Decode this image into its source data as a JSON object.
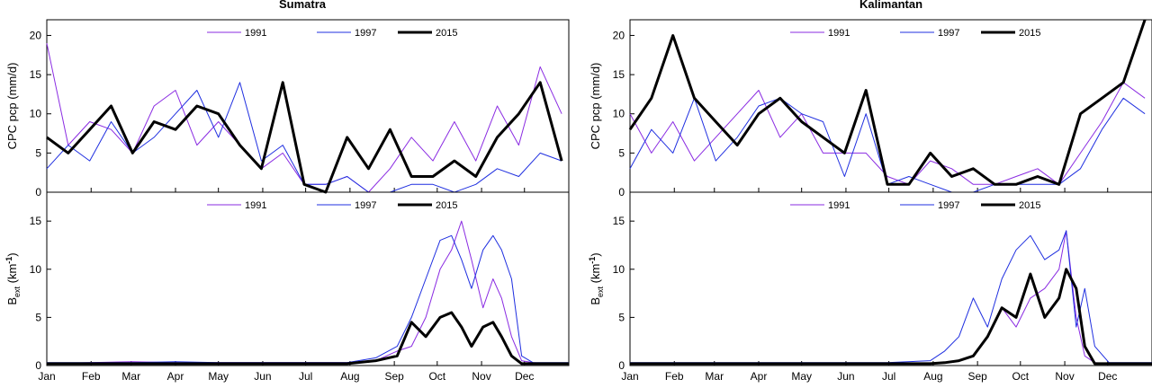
{
  "colors": {
    "y1991": "#8a2be2",
    "y1997": "#1f2fe0",
    "y2015": "#000000",
    "axis": "#000000"
  },
  "chart_data": [
    {
      "type": "line",
      "panel": "sumatra-precip",
      "title": "Sumatra",
      "xlabel": "",
      "ylabel": "CPC pcp (mm/d)",
      "ylim": [
        0,
        22
      ],
      "yticks": [
        "0",
        "5",
        "10",
        "15",
        "20"
      ],
      "legend": [
        "1991",
        "1997",
        "2015"
      ],
      "x": [
        0,
        15,
        30,
        45,
        60,
        75,
        90,
        105,
        120,
        135,
        150,
        165,
        180,
        195,
        210,
        225,
        240,
        255,
        270,
        285,
        300,
        315,
        330,
        345,
        360
      ],
      "series": [
        {
          "name": "1991",
          "values": [
            19,
            6,
            9,
            8,
            5,
            11,
            13,
            6,
            9,
            6,
            3,
            5,
            1,
            1,
            2,
            0,
            3,
            7,
            4,
            9,
            4,
            11,
            6,
            16,
            10
          ]
        },
        {
          "name": "1997",
          "values": [
            3,
            6,
            4,
            9,
            5,
            7,
            10,
            13,
            7,
            14,
            4,
            6,
            1,
            1,
            2,
            0,
            0,
            1,
            1,
            0,
            1,
            3,
            2,
            5,
            4
          ]
        },
        {
          "name": "2015",
          "values": [
            7,
            5,
            8,
            11,
            5,
            9,
            8,
            11,
            10,
            6,
            3,
            14,
            1,
            0,
            7,
            3,
            8,
            2,
            2,
            4,
            2,
            7,
            10,
            14,
            4
          ]
        }
      ]
    },
    {
      "type": "line",
      "panel": "sumatra-bext",
      "title": "",
      "xlabel": "",
      "ylabel_main": "B",
      "ylabel_sub": "ext",
      "ylabel_unit": "(km",
      "ylabel_exp": "-1",
      "ylabel_close": ")",
      "ylim": [
        0,
        18
      ],
      "yticks": [
        "0",
        "5",
        "10",
        "15"
      ],
      "xticks": [
        "Jan",
        "Feb",
        "Mar",
        "Apr",
        "May",
        "Jun",
        "Jul",
        "Aug",
        "Sep",
        "Oct",
        "Nov",
        "Dec"
      ],
      "legend": [
        "1991",
        "1997",
        "2015"
      ],
      "x": [
        0,
        30,
        60,
        90,
        120,
        150,
        180,
        210,
        230,
        245,
        255,
        265,
        275,
        283,
        290,
        297,
        305,
        312,
        318,
        325,
        332,
        340,
        350,
        365
      ],
      "series": [
        {
          "name": "1991",
          "values": [
            0.2,
            0.3,
            0.4,
            0.3,
            0.3,
            0.3,
            0.3,
            0.3,
            0.5,
            1.5,
            2,
            5,
            10,
            12,
            15,
            11,
            6,
            9,
            7,
            3,
            0.5,
            0.3,
            0.2,
            0.2
          ]
        },
        {
          "name": "1997",
          "values": [
            0.3,
            0.3,
            0.3,
            0.4,
            0.3,
            0.3,
            0.3,
            0.3,
            0.8,
            2,
            5,
            9,
            13,
            13.5,
            11,
            8,
            12,
            13.5,
            12,
            9,
            1,
            0.3,
            0.3,
            0.3
          ]
        },
        {
          "name": "2015",
          "values": [
            0.2,
            0.2,
            0.2,
            0.2,
            0.2,
            0.2,
            0.2,
            0.2,
            0.5,
            1,
            4.5,
            3,
            5,
            5.5,
            4,
            2,
            4,
            4.5,
            3,
            1,
            0.2,
            0.2,
            0.2,
            0.2
          ]
        }
      ]
    },
    {
      "type": "line",
      "panel": "kalimantan-precip",
      "title": "Kalimantan",
      "xlabel": "",
      "ylabel": "CPC pcp (mm/d)",
      "ylim": [
        0,
        22
      ],
      "yticks": [
        "0",
        "5",
        "10",
        "15",
        "20"
      ],
      "legend": [
        "1991",
        "1997",
        "2015"
      ],
      "x": [
        0,
        15,
        30,
        45,
        60,
        75,
        90,
        105,
        120,
        135,
        150,
        165,
        180,
        195,
        210,
        225,
        240,
        255,
        270,
        285,
        300,
        315,
        330,
        345,
        360
      ],
      "series": [
        {
          "name": "1991",
          "values": [
            10,
            5,
            9,
            4,
            7,
            10,
            13,
            7,
            10,
            5,
            5,
            5,
            2,
            1,
            4,
            3,
            1,
            1,
            2,
            3,
            1,
            5,
            9,
            14,
            12
          ]
        },
        {
          "name": "1997",
          "values": [
            3,
            8,
            5,
            12,
            4,
            7,
            11,
            12,
            10,
            9,
            2,
            10,
            1,
            2,
            1,
            0,
            0,
            1,
            1,
            1,
            1,
            3,
            8,
            12,
            10
          ]
        },
        {
          "name": "2015",
          "values": [
            8,
            12,
            20,
            12,
            9,
            6,
            10,
            12,
            9,
            7,
            5,
            13,
            1,
            1,
            5,
            2,
            3,
            1,
            1,
            2,
            1,
            10,
            12,
            14,
            22
          ]
        }
      ]
    },
    {
      "type": "line",
      "panel": "kalimantan-bext",
      "title": "",
      "xlabel": "",
      "ylabel_main": "B",
      "ylabel_sub": "ext",
      "ylabel_unit": "(km",
      "ylabel_exp": "-1",
      "ylabel_close": ")",
      "ylim": [
        0,
        18
      ],
      "yticks": [
        "0",
        "5",
        "10",
        "15"
      ],
      "xticks": [
        "Jan",
        "Feb",
        "Mar",
        "Apr",
        "May",
        "Jun",
        "Jul",
        "Aug",
        "Sep",
        "Oct",
        "Nov",
        "Dec"
      ],
      "legend": [
        "1991",
        "1997",
        "2015"
      ],
      "x": [
        0,
        30,
        60,
        90,
        120,
        150,
        180,
        210,
        220,
        230,
        240,
        250,
        260,
        270,
        280,
        290,
        300,
        305,
        312,
        318,
        325,
        335,
        345,
        365
      ],
      "series": [
        {
          "name": "1991",
          "values": [
            0.2,
            0.2,
            0.2,
            0.2,
            0.2,
            0.2,
            0.2,
            0.2,
            0.3,
            0.5,
            1,
            3,
            6,
            4,
            7,
            8,
            10,
            14,
            5,
            1,
            0.3,
            0.2,
            0.2,
            0.2
          ]
        },
        {
          "name": "1997",
          "values": [
            0.3,
            0.3,
            0.3,
            0.3,
            0.3,
            0.3,
            0.3,
            0.5,
            1.5,
            3,
            7,
            4,
            9,
            12,
            13.5,
            11,
            12,
            14,
            4,
            8,
            2,
            0.3,
            0.3,
            0.3
          ]
        },
        {
          "name": "2015",
          "values": [
            0.2,
            0.2,
            0.2,
            0.2,
            0.2,
            0.2,
            0.2,
            0.2,
            0.3,
            0.5,
            1,
            3,
            6,
            5,
            9.5,
            5,
            7,
            10,
            8,
            2,
            0.2,
            0.2,
            0.2,
            0.2
          ]
        }
      ]
    }
  ]
}
